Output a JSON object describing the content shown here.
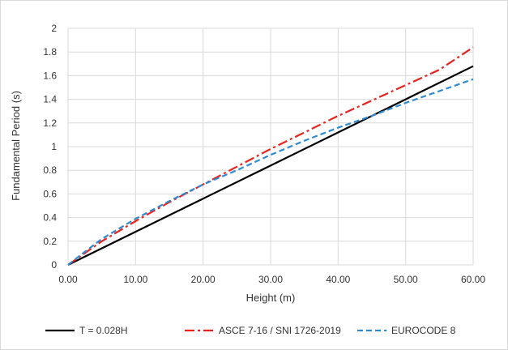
{
  "chart_data": {
    "type": "line",
    "title": "",
    "xlabel": "Height (m)",
    "ylabel": "Fundamental Period (s)",
    "xlim": [
      0,
      60
    ],
    "ylim": [
      0,
      2
    ],
    "xticks": [
      0,
      10,
      20,
      30,
      40,
      50,
      60
    ],
    "xtick_labels": [
      "0.00",
      "10.00",
      "20.00",
      "30.00",
      "40.00",
      "50.00",
      "60.00"
    ],
    "yticks": [
      0,
      0.2,
      0.4,
      0.6,
      0.8,
      1,
      1.2,
      1.4,
      1.6,
      1.8,
      2
    ],
    "ytick_labels": [
      "0",
      "0.2",
      "0.4",
      "0.6",
      "0.8",
      "1",
      "1.2",
      "1.4",
      "1.6",
      "1.8",
      "2"
    ],
    "grid": true,
    "legend_position": "bottom",
    "series": [
      {
        "name": "T = 0.028H",
        "color": "#000000",
        "dash": "solid",
        "x": [
          0,
          10,
          20,
          30,
          40,
          50,
          60
        ],
        "y": [
          0,
          0.28,
          0.56,
          0.84,
          1.12,
          1.4,
          1.68
        ]
      },
      {
        "name": "ASCE 7-16 / SNI 1726-2019",
        "color": "#e8231f",
        "dash": "dashdot",
        "x": [
          0,
          5,
          10,
          15,
          20,
          25,
          30,
          35,
          40,
          45,
          50,
          55,
          60
        ],
        "y": [
          0,
          0.2,
          0.37,
          0.53,
          0.68,
          0.83,
          0.98,
          1.12,
          1.26,
          1.39,
          1.52,
          1.65,
          1.84
        ]
      },
      {
        "name": "EUROCODE 8",
        "color": "#2e8bd0",
        "dash": "dashed",
        "x": [
          0,
          2,
          5,
          10,
          15,
          20,
          25,
          30,
          35,
          40,
          45,
          50,
          55,
          60
        ],
        "y": [
          0,
          0.09,
          0.22,
          0.39,
          0.54,
          0.68,
          0.8,
          0.93,
          1.05,
          1.16,
          1.26,
          1.37,
          1.47,
          1.57
        ]
      }
    ]
  }
}
